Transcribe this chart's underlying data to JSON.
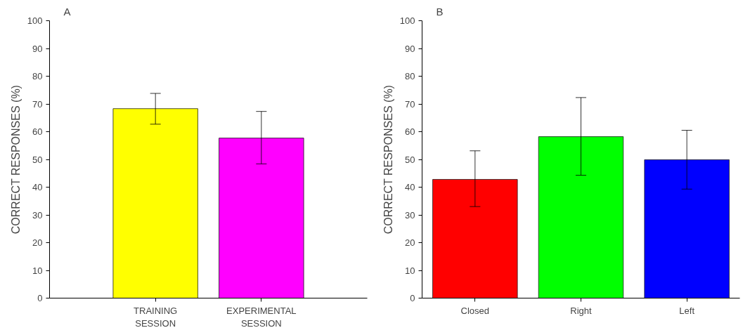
{
  "chart_data": [
    {
      "type": "bar",
      "title": "A",
      "ylabel": "CORRECT RESPONSES (%)",
      "categories": [
        "TRAINING\nSESSION",
        "EXPERIMENTAL\nSESSION"
      ],
      "values": [
        68.3,
        57.7
      ],
      "colors": [
        "#ffff00",
        "#ff00ff"
      ],
      "errors": [
        [
          62.7,
          73.8
        ],
        [
          48.4,
          67.3
        ]
      ],
      "ylim": [
        0,
        100
      ],
      "yticks": [
        0,
        10,
        20,
        30,
        40,
        50,
        60,
        70,
        80,
        90,
        100
      ],
      "grid": false
    },
    {
      "type": "bar",
      "title": "B",
      "ylabel": "CORRECT RESPONSES (%)",
      "categories": [
        "Closed",
        "Right",
        "Left"
      ],
      "values": [
        42.8,
        58.2,
        49.9
      ],
      "colors": [
        "#ff0000",
        "#00ff00",
        "#0000ff"
      ],
      "errors": [
        [
          33.0,
          53.1
        ],
        [
          44.3,
          72.3
        ],
        [
          39.3,
          60.5
        ]
      ],
      "ylim": [
        0,
        100
      ],
      "yticks": [
        0,
        10,
        20,
        30,
        40,
        50,
        60,
        70,
        80,
        90,
        100
      ],
      "grid": false
    }
  ]
}
